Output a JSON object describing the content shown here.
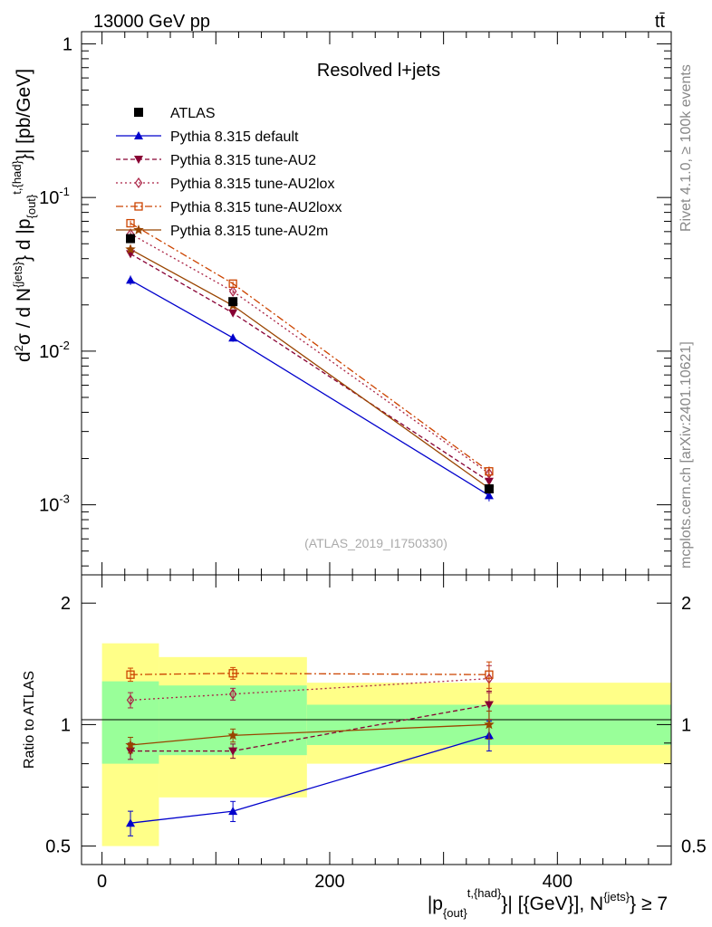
{
  "header": {
    "left": "13000 GeV pp",
    "right": "tt̄"
  },
  "side_labels": {
    "rivet": "Rivet 4.1.0, ≥ 100k events",
    "mcplots": "mcplots.cern.ch [arXiv:2401.10621]"
  },
  "watermark": "(ATLAS_2019_I1750330)",
  "plot_title": "Resolved l+jets",
  "axes": {
    "main_ylabel_prefix": "d",
    "main_ylabel_sup2": "2",
    "main_ylabel_mid1": "σ / d N",
    "main_ylabel_jets": "{jets}",
    "main_ylabel_mid2": "} d |p",
    "main_ylabel_out": "{out}",
    "main_ylabel_thad": "t,{had}",
    "main_ylabel_end": "}| [pb/GeV]",
    "ratio_ylabel": "Ratio to ATLAS",
    "xlabel_p": "|p",
    "xlabel_out": "{out}",
    "xlabel_thad": "t,{had}",
    "xlabel_mid": "}| [{GeV}], N",
    "xlabel_jets": "{jets}",
    "xlabel_end": "} ≥ 7",
    "main_ytick_labels": [
      {
        "base": "10",
        "exp": "-3",
        "value": 0.001
      },
      {
        "base": "10",
        "exp": "-2",
        "value": 0.01
      },
      {
        "base": "10",
        "exp": "-1",
        "value": 0.1
      },
      {
        "base": "1",
        "exp": "",
        "value": 1
      }
    ],
    "ratio_ytick_labels": [
      {
        "label": "0.5",
        "value": 0.5
      },
      {
        "label": "1",
        "value": 1
      },
      {
        "label": "2",
        "value": 2
      }
    ],
    "xtick_labels": [
      {
        "label": "0",
        "value": 0
      },
      {
        "label": "200",
        "value": 200
      },
      {
        "label": "400",
        "value": 400
      }
    ]
  },
  "chart_data": {
    "type": "scatter",
    "title": "Resolved l+jets",
    "x": [
      25,
      115,
      340
    ],
    "x_bin_edges": [
      0,
      50,
      180,
      500
    ],
    "xlim": [
      -18,
      500
    ],
    "main_ylim": [
      0.00035,
      1.2
    ],
    "main_yscale": "log",
    "ratio_ylim": [
      0.45,
      2.35
    ],
    "ratio_yscale": "log",
    "legend_position": "top-left",
    "data": {
      "name": "ATLAS",
      "color": "#000000",
      "values": [
        0.054,
        0.021,
        0.00127
      ]
    },
    "band_inner": [
      [
        0.8,
        1.28
      ],
      [
        0.84,
        1.25
      ],
      [
        0.89,
        1.12
      ]
    ],
    "band_outer": [
      [
        0.5,
        1.59
      ],
      [
        0.66,
        1.47
      ],
      [
        0.8,
        1.27
      ]
    ],
    "series": [
      {
        "name": "Pythia 8.315 default",
        "color": "#0000cc",
        "marker": "triangle-up",
        "dash": "",
        "values": [
          0.029,
          0.0122,
          0.00115
        ],
        "ratio": [
          0.57,
          0.61,
          0.94
        ],
        "ratio_err": [
          0.04,
          0.035,
          0.08
        ]
      },
      {
        "name": "Pythia 8.315 tune-AU2",
        "color": "#880033",
        "marker": "triangle-down",
        "dash": "5,3",
        "values": [
          0.043,
          0.0177,
          0.00142
        ],
        "ratio": [
          0.86,
          0.86,
          1.12
        ],
        "ratio_err": [
          0.04,
          0.035,
          0.09
        ]
      },
      {
        "name": "Pythia 8.315 tune-AU2lox",
        "color": "#aa2244",
        "marker": "diamond-open",
        "dash": "2,3",
        "values": [
          0.058,
          0.0245,
          0.0016
        ],
        "ratio": [
          1.15,
          1.19,
          1.3
        ],
        "ratio_err": [
          0.05,
          0.04,
          0.1
        ]
      },
      {
        "name": "Pythia 8.315 tune-AU2loxx",
        "color": "#cc4400",
        "marker": "square-open",
        "dash": "8,3,2,3",
        "values": [
          0.068,
          0.0275,
          0.00165
        ],
        "ratio": [
          1.33,
          1.34,
          1.33
        ],
        "ratio_err": [
          0.05,
          0.045,
          0.1
        ]
      },
      {
        "name": "Pythia 8.315 tune-AU2m",
        "color": "#994400",
        "marker": "star",
        "dash": "",
        "values": [
          0.046,
          0.0198,
          0.00128
        ],
        "ratio": [
          0.89,
          0.94,
          1.0
        ],
        "ratio_err": [
          0.04,
          0.035,
          0.08
        ]
      }
    ]
  }
}
